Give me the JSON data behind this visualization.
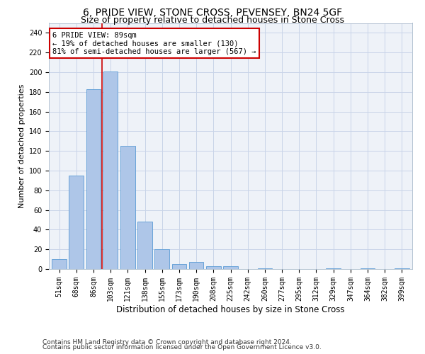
{
  "title1": "6, PRIDE VIEW, STONE CROSS, PEVENSEY, BN24 5GF",
  "title2": "Size of property relative to detached houses in Stone Cross",
  "xlabel": "Distribution of detached houses by size in Stone Cross",
  "ylabel": "Number of detached properties",
  "categories": [
    "51sqm",
    "68sqm",
    "86sqm",
    "103sqm",
    "121sqm",
    "138sqm",
    "155sqm",
    "173sqm",
    "190sqm",
    "208sqm",
    "225sqm",
    "242sqm",
    "260sqm",
    "277sqm",
    "295sqm",
    "312sqm",
    "329sqm",
    "347sqm",
    "364sqm",
    "382sqm",
    "399sqm"
  ],
  "values": [
    10,
    95,
    183,
    201,
    125,
    48,
    20,
    5,
    7,
    3,
    3,
    0,
    1,
    0,
    0,
    0,
    1,
    0,
    1,
    0,
    1
  ],
  "bar_color": "#aec6e8",
  "bar_edge_color": "#5b9bd5",
  "grid_color": "#c8d4e8",
  "bg_color": "#eef2f8",
  "vline_x": 2.5,
  "vline_color": "#cc0000",
  "annotation_text": "6 PRIDE VIEW: 89sqm\n← 19% of detached houses are smaller (130)\n81% of semi-detached houses are larger (567) →",
  "annotation_box_color": "#ffffff",
  "annotation_box_edge": "#cc0000",
  "ylim": [
    0,
    250
  ],
  "yticks": [
    0,
    20,
    40,
    60,
    80,
    100,
    120,
    140,
    160,
    180,
    200,
    220,
    240
  ],
  "footer1": "Contains HM Land Registry data © Crown copyright and database right 2024.",
  "footer2": "Contains public sector information licensed under the Open Government Licence v3.0.",
  "title1_fontsize": 10,
  "title2_fontsize": 9,
  "xlabel_fontsize": 8.5,
  "ylabel_fontsize": 8,
  "tick_fontsize": 7,
  "annotation_fontsize": 7.5,
  "footer_fontsize": 6.5
}
